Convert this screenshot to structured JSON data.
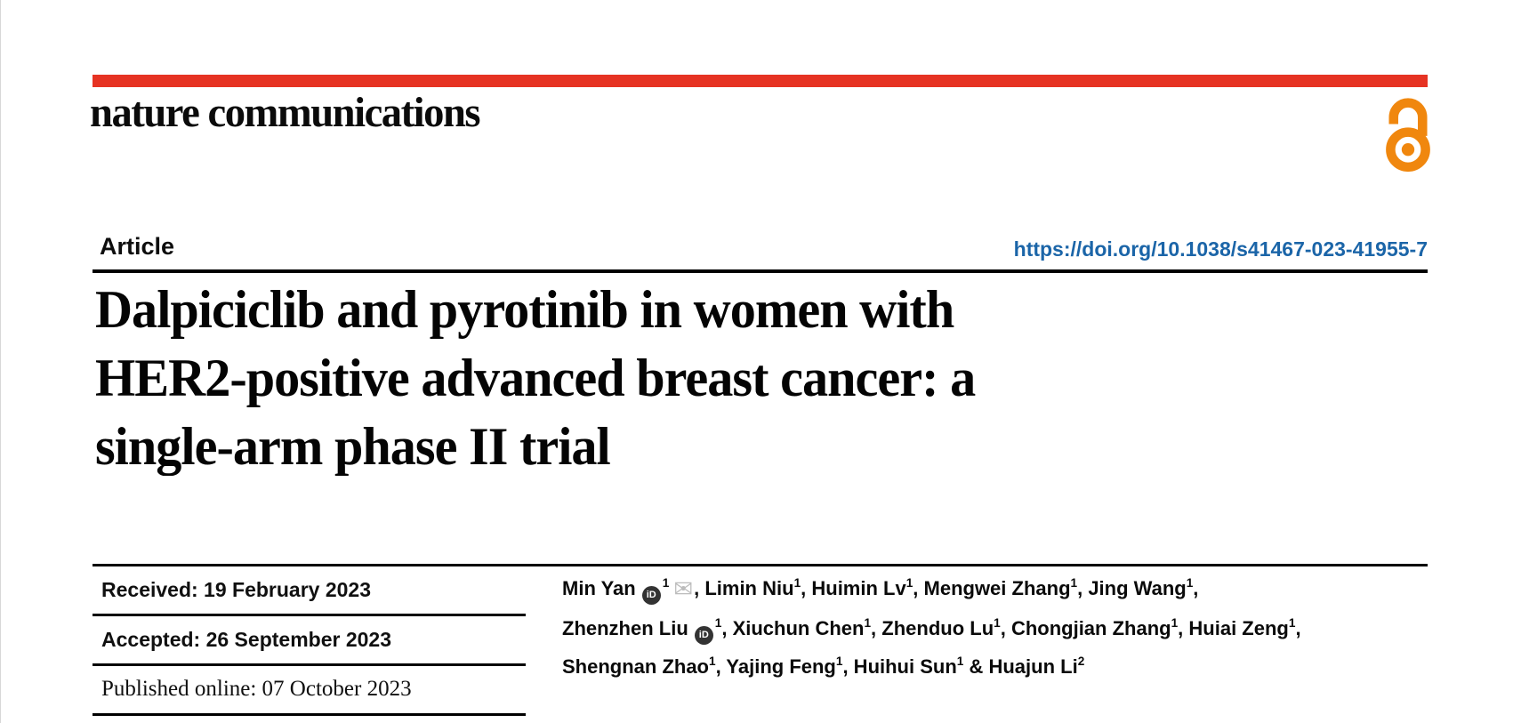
{
  "journal": {
    "name": "nature communications"
  },
  "article": {
    "kind_label": "Article",
    "doi_url": "https://doi.org/10.1038/s41467-023-41955-7",
    "title_lines": [
      "Dalpiciclib and pyrotinib in women with",
      "HER2-positive advanced breast cancer: a",
      "single-arm phase II trial"
    ]
  },
  "history": {
    "received": "Received: 19 February 2023",
    "accepted": "Accepted: 26 September 2023",
    "published": "Published online: 07 October 2023"
  },
  "authors": {
    "lines": [
      [
        {
          "t": "Min Yan"
        },
        {
          "icon": "orcid"
        },
        {
          "sup": "1"
        },
        {
          "icon": "email"
        },
        {
          "t": ", Limin Niu"
        },
        {
          "sup": "1"
        },
        {
          "t": ", Huimin Lv"
        },
        {
          "sup": "1"
        },
        {
          "t": ", Mengwei Zhang"
        },
        {
          "sup": "1"
        },
        {
          "t": ", Jing Wang"
        },
        {
          "sup": "1"
        },
        {
          "t": ","
        }
      ],
      [
        {
          "t": "Zhenzhen Liu"
        },
        {
          "icon": "orcid"
        },
        {
          "sup": "1"
        },
        {
          "t": ", Xiuchun Chen"
        },
        {
          "sup": "1"
        },
        {
          "t": ", Zhenduo Lu"
        },
        {
          "sup": "1"
        },
        {
          "t": ", Chongjian Zhang"
        },
        {
          "sup": "1"
        },
        {
          "t": ", Huiai Zeng"
        },
        {
          "sup": "1"
        },
        {
          "t": ","
        }
      ],
      [
        {
          "t": "Shengnan Zhao"
        },
        {
          "sup": "1"
        },
        {
          "t": ", Yajing Feng"
        },
        {
          "sup": "1"
        },
        {
          "t": ", Huihui Sun"
        },
        {
          "sup": "1"
        },
        {
          "t": " & Huajun Li"
        },
        {
          "sup": "2"
        }
      ]
    ]
  },
  "icons": {
    "orcid_badge_text": "iD",
    "email_glyph": "✉",
    "open_access": "open-access-padlock"
  },
  "colors": {
    "brand_red": "#e63323",
    "link_blue": "#1b65a8",
    "oa_orange": "#f0870e",
    "text_black": "#0a0a0a"
  }
}
